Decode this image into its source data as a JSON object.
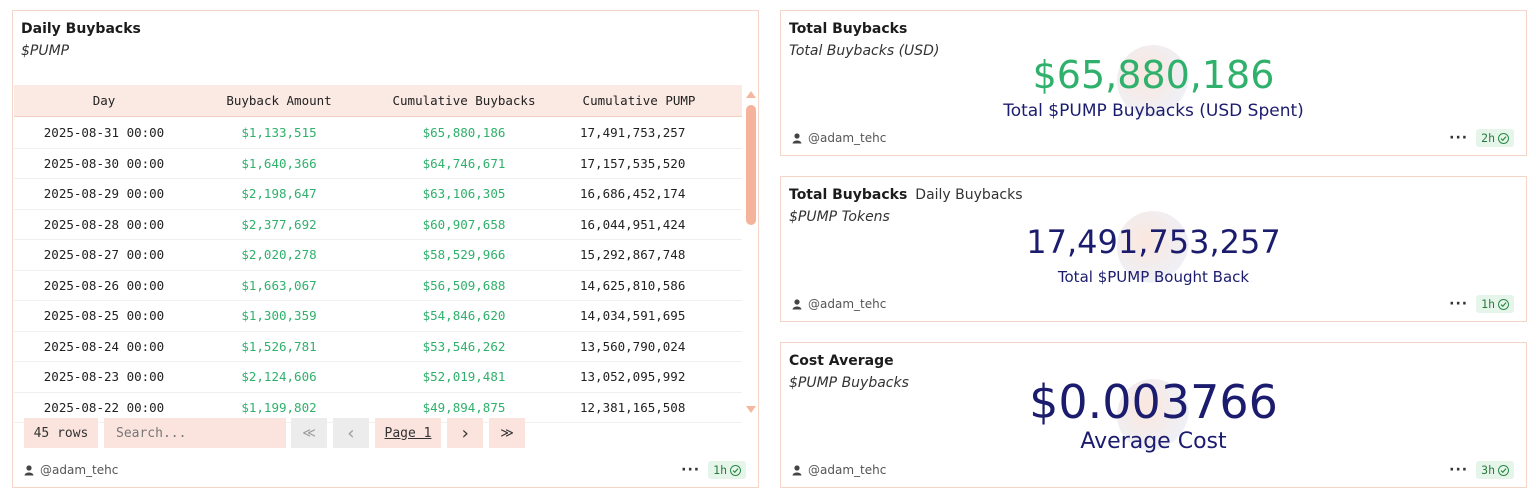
{
  "daily_buybacks": {
    "title": "Daily Buybacks",
    "subtitle": "$PUMP",
    "columns": [
      "Day",
      "Buyback Amount",
      "Cumulative Buybacks",
      "Cumulative PUMP"
    ],
    "rows": [
      [
        "2025-08-31 00:00",
        "$1,133,515",
        "$65,880,186",
        "17,491,753,257"
      ],
      [
        "2025-08-30 00:00",
        "$1,640,366",
        "$64,746,671",
        "17,157,535,520"
      ],
      [
        "2025-08-29 00:00",
        "$2,198,647",
        "$63,106,305",
        "16,686,452,174"
      ],
      [
        "2025-08-28 00:00",
        "$2,377,692",
        "$60,907,658",
        "16,044,951,424"
      ],
      [
        "2025-08-27 00:00",
        "$2,020,278",
        "$58,529,966",
        "15,292,867,748"
      ],
      [
        "2025-08-26 00:00",
        "$1,663,067",
        "$56,509,688",
        "14,625,810,586"
      ],
      [
        "2025-08-25 00:00",
        "$1,300,359",
        "$54,846,620",
        "14,034,591,695"
      ],
      [
        "2025-08-24 00:00",
        "$1,526,781",
        "$53,546,262",
        "13,560,790,024"
      ],
      [
        "2025-08-23 00:00",
        "$2,124,606",
        "$52,019,481",
        "13,052,095,992"
      ],
      [
        "2025-08-22 00:00",
        "$1,199,802",
        "$49,894,875",
        "12,381,165,508"
      ]
    ],
    "row_count": "45 rows",
    "search_placeholder": "Search...",
    "pager": {
      "first": "≪",
      "prev": "‹",
      "page": "Page 1",
      "next": "›",
      "last": "≫"
    },
    "author": "@adam_tehc",
    "age": "1h"
  },
  "total_buybacks_usd": {
    "title": "Total Buybacks",
    "subtitle": "Total Buybacks (USD)",
    "value": "$65,880,186",
    "label": "Total $PUMP Buybacks (USD Spent)",
    "author": "@adam_tehc",
    "age": "2h"
  },
  "total_buybacks_tokens": {
    "title": "Total Buybacks",
    "tab": "Daily Buybacks",
    "subtitle": "$PUMP Tokens",
    "value": "17,491,753,257",
    "label": "Total $PUMP Bought Back",
    "author": "@adam_tehc",
    "age": "1h"
  },
  "cost_average": {
    "title": "Cost Average",
    "subtitle": "$PUMP Buybacks",
    "value": "$0.003766",
    "label": "Average Cost",
    "author": "@adam_tehc",
    "age": "3h"
  },
  "colors": {
    "green": "#2fb16c",
    "navy": "#1c1c6e",
    "accent": "#f4b39a",
    "border": "#f4d5c8"
  },
  "icons": {
    "author": "user-icon",
    "more": "more-icon",
    "status": "check-circle-icon"
  }
}
